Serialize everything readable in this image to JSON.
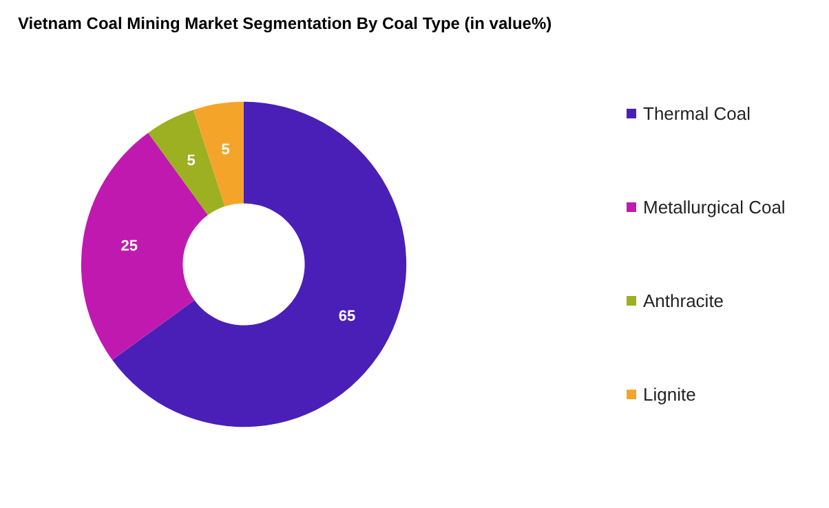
{
  "chart_data": {
    "type": "donut",
    "title": "Vietnam Coal Mining Market Segmentation By Coal Type (in value%)",
    "categories": [
      "Thermal Coal",
      "Metallurgical Coal",
      "Anthracite",
      "Lignite"
    ],
    "values": [
      65,
      25,
      5,
      5
    ],
    "colors": [
      "#4a1fb8",
      "#c019b0",
      "#9cb022",
      "#f5a42a"
    ],
    "data_labels": true,
    "legend": "right"
  }
}
